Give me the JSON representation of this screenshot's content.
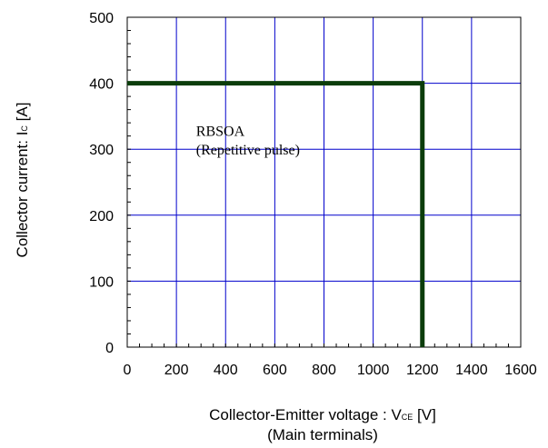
{
  "chart_data": {
    "type": "line",
    "title": "",
    "xlabel": "Collector-Emitter voltage : V",
    "xlabel_sub": "CE",
    "xlabel_unit": " [V]",
    "xlabel_line2": "(Main terminals)",
    "ylabel": "Collector current: I",
    "ylabel_sub": "C",
    "ylabel_unit": " [A]",
    "xlim": [
      0,
      1600
    ],
    "ylim": [
      0,
      500
    ],
    "x_ticks": [
      0,
      200,
      400,
      600,
      800,
      1000,
      1200,
      1400,
      1600
    ],
    "y_ticks": [
      0,
      100,
      200,
      300,
      400,
      500
    ],
    "grid": true,
    "grid_color": "#0000cc",
    "series": [
      {
        "color": "#0b3d0b",
        "points": [
          [
            0,
            400
          ],
          [
            1200,
            400
          ],
          [
            1200,
            0
          ]
        ]
      }
    ],
    "annotations": [
      {
        "text": "RBSOA",
        "x": 280,
        "y": 320
      },
      {
        "text": "(Repetitive pulse)",
        "x": 280,
        "y": 292
      }
    ]
  }
}
